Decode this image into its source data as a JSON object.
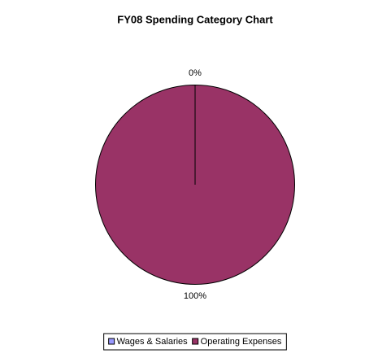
{
  "chart_data": {
    "type": "pie",
    "title": "FY08 Spending Category Chart",
    "categories": [
      "Wages & Salaries",
      "Operating Expenses"
    ],
    "values": [
      0,
      100
    ],
    "value_labels": [
      "0%",
      "100%"
    ],
    "colors": [
      "#9999ff",
      "#993366"
    ],
    "legend": "bottom"
  }
}
